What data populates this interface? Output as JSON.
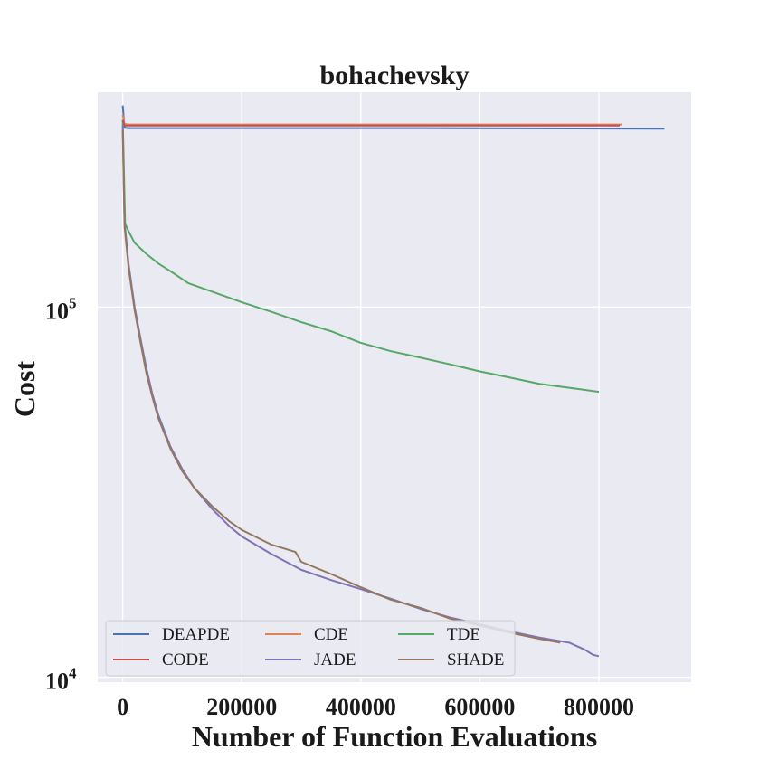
{
  "chart_data": {
    "type": "line",
    "title": "bohachevsky",
    "xlabel": "Number of Function Evaluations",
    "ylabel": "Cost",
    "x_scale": "linear",
    "y_scale": "log",
    "xlim": [
      -42000,
      955000
    ],
    "ylim": [
      9700,
      380000
    ],
    "x_ticks": [
      0,
      200000,
      400000,
      600000,
      800000
    ],
    "x_tick_labels": [
      "0",
      "200000",
      "400000",
      "600000",
      "800000"
    ],
    "y_ticks": [
      10000,
      100000
    ],
    "y_tick_labels": [
      {
        "base": "10",
        "exp": "4"
      },
      {
        "base": "10",
        "exp": "5"
      }
    ],
    "grid": true,
    "background": "#eaeaf2",
    "legend": {
      "position": "lower-left",
      "columns": 3
    },
    "series": [
      {
        "name": "DEAPDE",
        "color": "#4c72b0",
        "points": [
          [
            0,
            350000
          ],
          [
            3000,
            305000
          ],
          [
            10000,
            304000
          ],
          [
            100000,
            304000
          ],
          [
            500000,
            304000
          ],
          [
            910000,
            303000
          ]
        ]
      },
      {
        "name": "CDE",
        "color": "#dd8452",
        "points": [
          [
            0,
            330000
          ],
          [
            3000,
            312000
          ],
          [
            10000,
            311000
          ],
          [
            100000,
            311000
          ],
          [
            500000,
            311000
          ],
          [
            838000,
            311000
          ]
        ]
      },
      {
        "name": "TDE",
        "color": "#55a868",
        "points": [
          [
            0,
            320000
          ],
          [
            4000,
            168000
          ],
          [
            10000,
            160000
          ],
          [
            20000,
            149000
          ],
          [
            40000,
            139000
          ],
          [
            60000,
            131000
          ],
          [
            80000,
            125000
          ],
          [
            110000,
            116000
          ],
          [
            150000,
            110000
          ],
          [
            200000,
            103000
          ],
          [
            250000,
            97000
          ],
          [
            300000,
            91000
          ],
          [
            350000,
            86000
          ],
          [
            400000,
            80000
          ],
          [
            450000,
            76000
          ],
          [
            500000,
            73000
          ],
          [
            550000,
            70000
          ],
          [
            600000,
            67000
          ],
          [
            650000,
            64500
          ],
          [
            700000,
            62000
          ],
          [
            750000,
            60500
          ],
          [
            800000,
            59000
          ]
        ]
      },
      {
        "name": "CODE",
        "color": "#c44e52",
        "points": [
          [
            0,
            320000
          ],
          [
            3000,
            309000
          ],
          [
            10000,
            309000
          ],
          [
            100000,
            309000
          ],
          [
            500000,
            309000
          ],
          [
            835000,
            309000
          ]
        ]
      },
      {
        "name": "JADE",
        "color": "#8172b3",
        "points": [
          [
            0,
            310000
          ],
          [
            3000,
            170000
          ],
          [
            10000,
            130000
          ],
          [
            20000,
            100000
          ],
          [
            30000,
            82000
          ],
          [
            40000,
            68000
          ],
          [
            50000,
            58000
          ],
          [
            60000,
            51000
          ],
          [
            80000,
            42000
          ],
          [
            100000,
            36500
          ],
          [
            120000,
            32500
          ],
          [
            150000,
            28500
          ],
          [
            180000,
            25500
          ],
          [
            200000,
            24000
          ],
          [
            250000,
            21500
          ],
          [
            300000,
            19500
          ],
          [
            350000,
            18300
          ],
          [
            400000,
            17300
          ],
          [
            450000,
            16300
          ],
          [
            500000,
            15300
          ],
          [
            550000,
            14500
          ],
          [
            600000,
            13900
          ],
          [
            650000,
            13300
          ],
          [
            700000,
            12800
          ],
          [
            750000,
            12400
          ],
          [
            775000,
            11900
          ],
          [
            790000,
            11500
          ],
          [
            800000,
            11400
          ]
        ]
      },
      {
        "name": "SHADE",
        "color": "#937860",
        "points": [
          [
            0,
            300000
          ],
          [
            3000,
            165000
          ],
          [
            10000,
            127000
          ],
          [
            20000,
            98000
          ],
          [
            30000,
            80000
          ],
          [
            40000,
            66000
          ],
          [
            50000,
            57000
          ],
          [
            60000,
            50000
          ],
          [
            80000,
            41500
          ],
          [
            100000,
            36000
          ],
          [
            120000,
            32500
          ],
          [
            150000,
            29000
          ],
          [
            180000,
            26300
          ],
          [
            200000,
            25000
          ],
          [
            250000,
            22800
          ],
          [
            290000,
            21800
          ],
          [
            300000,
            20500
          ],
          [
            350000,
            19000
          ],
          [
            400000,
            17500
          ],
          [
            450000,
            16200
          ],
          [
            500000,
            15400
          ],
          [
            550000,
            14400
          ],
          [
            600000,
            13800
          ],
          [
            650000,
            13200
          ],
          [
            700000,
            12700
          ],
          [
            735000,
            12400
          ]
        ]
      }
    ]
  }
}
